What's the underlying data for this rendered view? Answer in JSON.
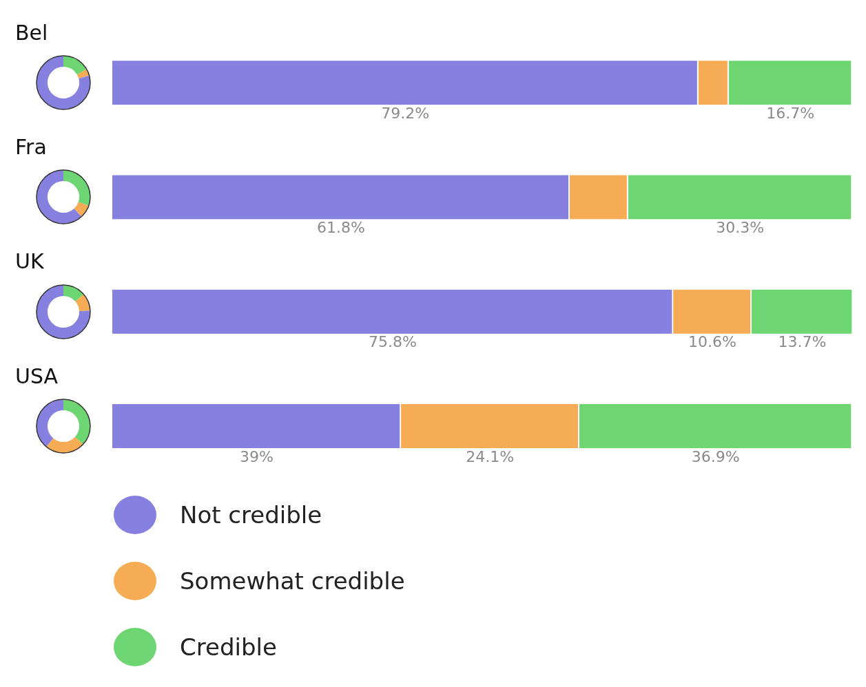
{
  "chart_data": {
    "type": "bar",
    "orientation": "horizontal",
    "stacked": true,
    "categories": [
      "Bel",
      "Fra",
      "UK",
      "USA"
    ],
    "legend": "bottom",
    "series": [
      {
        "name": "Not credible",
        "color": "#8680e0",
        "values": [
          79.2,
          61.8,
          75.8,
          39
        ],
        "value_labels": [
          "79.2%",
          "61.8%",
          "75.8%",
          "39%"
        ]
      },
      {
        "name": "Somewhat credible",
        "color": "#f6ac55",
        "values": [
          4.1,
          7.9,
          10.6,
          24.1
        ],
        "value_labels": [
          null,
          null,
          "10.6%",
          "24.1%"
        ]
      },
      {
        "name": "Credible",
        "color": "#6dd672",
        "values": [
          16.7,
          30.3,
          13.7,
          36.9
        ],
        "value_labels": [
          "16.7%",
          "30.3%",
          "13.7%",
          "36.9%"
        ]
      }
    ]
  }
}
